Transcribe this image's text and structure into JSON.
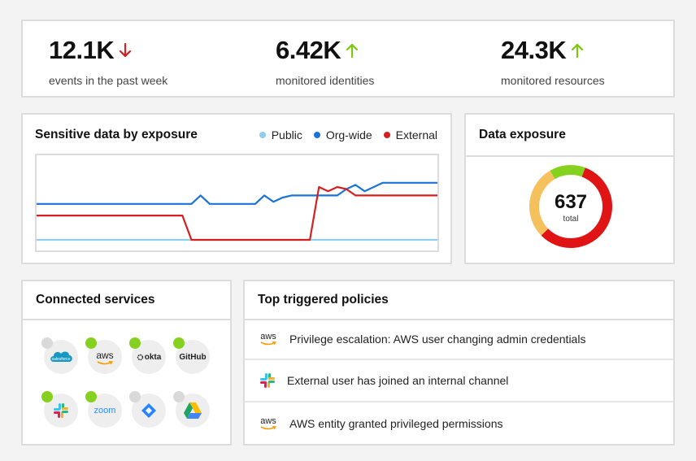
{
  "stats": [
    {
      "value": "12.1K",
      "label": "events in the past week",
      "trend": "down",
      "trend_color": "#d61f1f"
    },
    {
      "value": "6.42K",
      "label": "monitored identities",
      "trend": "up",
      "trend_color": "#7ac70c"
    },
    {
      "value": "24.3K",
      "label": "monitored resources",
      "trend": "up",
      "trend_color": "#7ac70c"
    }
  ],
  "sensitive": {
    "title": "Sensitive data by exposure",
    "legend": [
      {
        "label": "Public",
        "color": "#8ecdf0"
      },
      {
        "label": "Org-wide",
        "color": "#1a73d9"
      },
      {
        "label": "External",
        "color": "#d61f1f"
      }
    ],
    "chart_data": {
      "type": "line",
      "x": [
        0,
        1,
        2,
        3,
        4,
        5,
        6,
        7,
        8,
        9,
        10,
        11,
        12,
        13,
        14,
        15,
        16,
        17,
        18,
        19,
        20,
        21,
        22,
        23,
        24,
        25,
        26,
        27,
        28,
        29,
        30,
        31,
        32,
        33,
        34,
        35,
        36,
        37,
        38,
        39,
        40,
        41,
        42,
        43,
        44
      ],
      "series": [
        {
          "name": "Public",
          "color": "#8ecdf0",
          "values": [
            10,
            10,
            10,
            10,
            10,
            10,
            10,
            10,
            10,
            10,
            10,
            10,
            10,
            10,
            10,
            10,
            10,
            10,
            10,
            10,
            10,
            10,
            10,
            10,
            10,
            10,
            10,
            10,
            10,
            10,
            10,
            10,
            10,
            10,
            10,
            10,
            10,
            10,
            10,
            10,
            10,
            10,
            10,
            10,
            10
          ]
        },
        {
          "name": "Org-wide",
          "color": "#1a73d9",
          "values": [
            44,
            44,
            44,
            44,
            44,
            44,
            44,
            44,
            44,
            44,
            44,
            44,
            44,
            44,
            44,
            44,
            44,
            44,
            52,
            44,
            44,
            44,
            44,
            44,
            44,
            52,
            46,
            50,
            52,
            52,
            52,
            52,
            52,
            52,
            58,
            62,
            56,
            60,
            64,
            64,
            64,
            64,
            64,
            64,
            64
          ]
        },
        {
          "name": "External",
          "color": "#d61f1f",
          "values": [
            33,
            33,
            33,
            33,
            33,
            33,
            33,
            33,
            33,
            33,
            33,
            33,
            33,
            33,
            33,
            33,
            33,
            10,
            10,
            10,
            10,
            10,
            10,
            10,
            10,
            10,
            10,
            10,
            10,
            10,
            10,
            60,
            56,
            60,
            58,
            52,
            52,
            52,
            52,
            52,
            52,
            52,
            52,
            52,
            52
          ]
        }
      ],
      "ylim": [
        0,
        90
      ]
    }
  },
  "exposure": {
    "title": "Data exposure",
    "total_value": "637",
    "total_label": "total",
    "chart_data": {
      "type": "pie",
      "slices": [
        {
          "name": "green",
          "value": 14,
          "color": "#86d11f"
        },
        {
          "name": "red",
          "value": 57,
          "color": "#e01414"
        },
        {
          "name": "orange",
          "value": 29,
          "color": "#f5c15c"
        }
      ]
    }
  },
  "services": {
    "title": "Connected services",
    "items": [
      {
        "name": "salesforce",
        "label": "salesforce",
        "text_color": "#1798c1",
        "status_color": "#d9d9d9"
      },
      {
        "name": "aws",
        "label": "aws",
        "text_color": "#222222",
        "status_color": "#86d11f"
      },
      {
        "name": "okta",
        "label": "okta",
        "text_color": "#222222",
        "status_color": "#86d11f"
      },
      {
        "name": "github",
        "label": "GitHub",
        "text_color": "#222222",
        "status_color": "#86d11f"
      },
      {
        "name": "slack",
        "label": "",
        "text_color": "#222222",
        "status_color": "#86d11f"
      },
      {
        "name": "zoom",
        "label": "zoom",
        "text_color": "#2d8cff",
        "status_color": "#86d11f"
      },
      {
        "name": "jira",
        "label": "",
        "text_color": "#2684ff",
        "status_color": "#d9d9d9"
      },
      {
        "name": "google-drive",
        "label": "",
        "text_color": "#222222",
        "status_color": "#d9d9d9"
      }
    ]
  },
  "policies": {
    "title": "Top triggered policies",
    "items": [
      {
        "icon": "aws-icon",
        "icon_label": "aws",
        "text": "Privilege escalation: AWS user changing admin credentials"
      },
      {
        "icon": "slack-icon",
        "icon_label": "",
        "text": "External user has joined an internal channel"
      },
      {
        "icon": "aws-icon",
        "icon_label": "aws",
        "text": "AWS entity granted privileged permissions"
      }
    ]
  }
}
